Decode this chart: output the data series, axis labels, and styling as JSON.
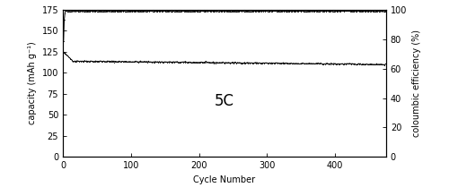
{
  "title": "5C",
  "xlabel": "Cycle Number",
  "ylabel_left": "capacity (mAh g⁻¹)",
  "ylabel_right": "coloumbic efficiency (%)",
  "xlim": [
    0,
    475
  ],
  "ylim_left": [
    0,
    175
  ],
  "ylim_right": [
    0,
    100
  ],
  "yticks_left": [
    0,
    25,
    50,
    75,
    100,
    125,
    150,
    175
  ],
  "yticks_right": [
    0,
    20,
    40,
    60,
    80,
    100
  ],
  "xticks": [
    0,
    100,
    200,
    300,
    400
  ],
  "capacity_start": 125,
  "capacity_dip": 114,
  "capacity_end": 110,
  "coulombic_stable": 99.0,
  "coulombic_first": 79,
  "n_cycles": 475,
  "line_color": "#000000",
  "background_color": "#ffffff",
  "marker_size": 1.2,
  "linewidth": 0.7,
  "title_fontsize": 12,
  "label_fontsize": 7,
  "tick_fontsize": 7
}
